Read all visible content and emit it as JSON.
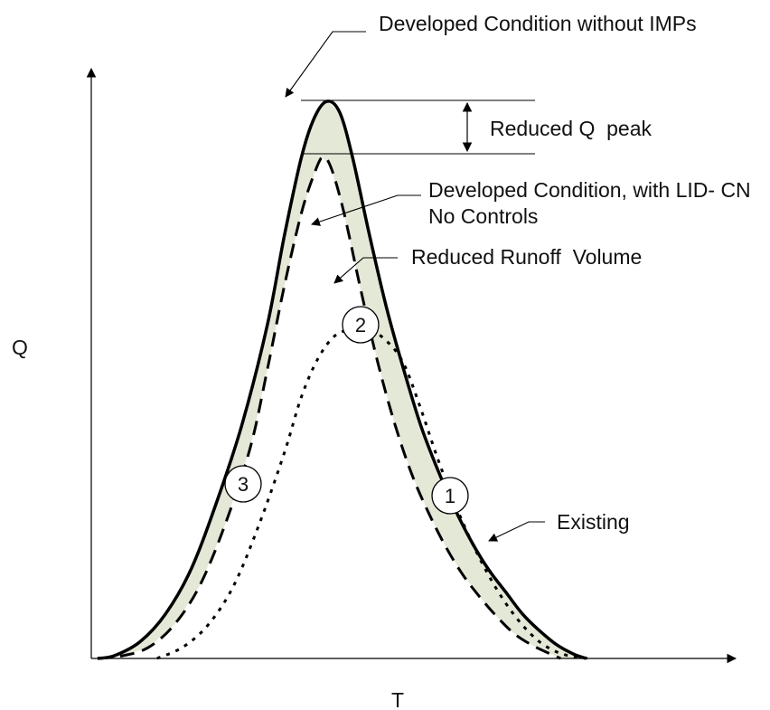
{
  "chart_data": {
    "type": "line",
    "xlabel": "T",
    "ylabel": "Q",
    "grid": false,
    "legend": "none",
    "colors": {
      "line": "#000000",
      "shade": "#e4e8d6"
    },
    "series": [
      {
        "name": "Developed Condition without IMPs",
        "marker": "2",
        "style": "solid",
        "points": [
          [
            0,
            0
          ],
          [
            2,
            0.005
          ],
          [
            5,
            0.03
          ],
          [
            8,
            0.08
          ],
          [
            11,
            0.16
          ],
          [
            14,
            0.28
          ],
          [
            17,
            0.42
          ],
          [
            20,
            0.6
          ],
          [
            22,
            0.76
          ],
          [
            24,
            0.9
          ],
          [
            25.5,
            0.97
          ],
          [
            27,
            1.0
          ],
          [
            28.5,
            0.98
          ],
          [
            30,
            0.9
          ],
          [
            32,
            0.76
          ],
          [
            34,
            0.63
          ],
          [
            36,
            0.52
          ],
          [
            38,
            0.42
          ],
          [
            40,
            0.34
          ],
          [
            42,
            0.27
          ],
          [
            44,
            0.21
          ],
          [
            46,
            0.16
          ],
          [
            48,
            0.12
          ],
          [
            50,
            0.08
          ],
          [
            52,
            0.05
          ],
          [
            54,
            0.025
          ],
          [
            56,
            0.008
          ],
          [
            57.5,
            0
          ]
        ]
      },
      {
        "name": "Developed Condition, with LID- CN\nNo Controls",
        "marker": "3",
        "style": "dashed",
        "points": [
          [
            0,
            0
          ],
          [
            3,
            0.005
          ],
          [
            6,
            0.02
          ],
          [
            9,
            0.06
          ],
          [
            12,
            0.13
          ],
          [
            15,
            0.24
          ],
          [
            18,
            0.38
          ],
          [
            20,
            0.52
          ],
          [
            22,
            0.67
          ],
          [
            24,
            0.8
          ],
          [
            25.5,
            0.87
          ],
          [
            26.5,
            0.9
          ],
          [
            27.5,
            0.88
          ],
          [
            29,
            0.8
          ],
          [
            31,
            0.66
          ],
          [
            33,
            0.53
          ],
          [
            35,
            0.42
          ],
          [
            37,
            0.33
          ],
          [
            39,
            0.26
          ],
          [
            41,
            0.2
          ],
          [
            43,
            0.15
          ],
          [
            45,
            0.11
          ],
          [
            47,
            0.075
          ],
          [
            49,
            0.045
          ],
          [
            51,
            0.025
          ],
          [
            53,
            0.01
          ],
          [
            54.5,
            0
          ]
        ]
      },
      {
        "name": "Existing",
        "marker": "1",
        "style": "dotted",
        "points": [
          [
            7,
            0
          ],
          [
            10,
            0.02
          ],
          [
            13,
            0.06
          ],
          [
            16,
            0.13
          ],
          [
            19,
            0.24
          ],
          [
            22,
            0.37
          ],
          [
            24,
            0.47
          ],
          [
            26,
            0.54
          ],
          [
            28,
            0.58
          ],
          [
            30,
            0.59
          ],
          [
            32,
            0.59
          ],
          [
            34,
            0.57
          ],
          [
            36,
            0.53
          ],
          [
            38,
            0.45
          ],
          [
            40,
            0.36
          ],
          [
            42,
            0.28
          ],
          [
            44,
            0.21
          ],
          [
            46,
            0.15
          ],
          [
            48,
            0.1
          ],
          [
            50,
            0.06
          ],
          [
            52,
            0.03
          ],
          [
            54,
            0.012
          ],
          [
            56,
            0.003
          ],
          [
            58,
            0
          ]
        ]
      }
    ],
    "annotations": [
      {
        "id": "peak",
        "text": "Developed Condition without IMPs"
      },
      {
        "id": "reduced_peak",
        "text": "Reduced Q  peak"
      },
      {
        "id": "lid_line1",
        "text": "Developed Condition, with LID- CN"
      },
      {
        "id": "lid_line2",
        "text": "No Controls"
      },
      {
        "id": "runoff",
        "text": "Reduced Runoff  Volume"
      },
      {
        "id": "existing",
        "text": "Existing"
      }
    ],
    "markers": [
      "1",
      "2",
      "3"
    ]
  }
}
